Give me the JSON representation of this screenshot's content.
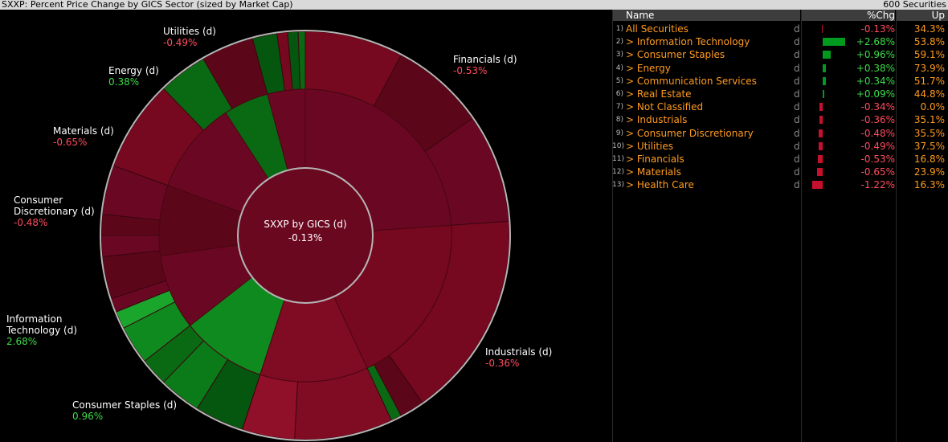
{
  "window": {
    "title": "SXXP: Percent Price Change by GICS Sector (sized by Market Cap)",
    "count": "600 Securities"
  },
  "chart_data": {
    "type": "sunburst",
    "center_label": "SXXP by GICS (d)",
    "center_value": "-0.13%",
    "sectors": [
      {
        "name": "Financials (d)",
        "value": "-0.53%",
        "chg": -0.53
      },
      {
        "name": "Industrials (d)",
        "value": "-0.36%",
        "chg": -0.36
      },
      {
        "name": "Consumer Staples (d)",
        "value": "0.96%",
        "chg": 0.96
      },
      {
        "name": "Information Technology (d)",
        "value": "2.68%",
        "chg": 2.68
      },
      {
        "name": "Consumer Discretionary (d)",
        "value": "-0.48%",
        "chg": -0.48
      },
      {
        "name": "Materials (d)",
        "value": "-0.65%",
        "chg": -0.65
      },
      {
        "name": "Energy (d)",
        "value": "0.38%",
        "chg": 0.38
      },
      {
        "name": "Utilities (d)",
        "value": "-0.49%",
        "chg": -0.49
      }
    ]
  },
  "table": {
    "columns": {
      "name": "Name",
      "chg": "%Chg",
      "up": "Up"
    },
    "rows": [
      {
        "idx": "1)",
        "name": "All Securities",
        "d": "d",
        "chg": "-0.13%",
        "chg_val": -0.13,
        "up": "34.3%"
      },
      {
        "idx": "2)",
        "name": "> Information Technology",
        "d": "d",
        "chg": "+2.68%",
        "chg_val": 2.68,
        "up": "53.8%"
      },
      {
        "idx": "3)",
        "name": "> Consumer Staples",
        "d": "d",
        "chg": "+0.96%",
        "chg_val": 0.96,
        "up": "59.1%"
      },
      {
        "idx": "4)",
        "name": "> Energy",
        "d": "d",
        "chg": "+0.38%",
        "chg_val": 0.38,
        "up": "73.9%"
      },
      {
        "idx": "5)",
        "name": "> Communication Services",
        "d": "d",
        "chg": "+0.34%",
        "chg_val": 0.34,
        "up": "51.7%"
      },
      {
        "idx": "6)",
        "name": "> Real Estate",
        "d": "d",
        "chg": "+0.09%",
        "chg_val": 0.09,
        "up": "44.8%"
      },
      {
        "idx": "7)",
        "name": "> Not Classified",
        "d": "d",
        "chg": "-0.34%",
        "chg_val": -0.34,
        "up": "0.0%"
      },
      {
        "idx": "8)",
        "name": "> Industrials",
        "d": "d",
        "chg": "-0.36%",
        "chg_val": -0.36,
        "up": "35.1%"
      },
      {
        "idx": "9)",
        "name": "> Consumer Discretionary",
        "d": "d",
        "chg": "-0.48%",
        "chg_val": -0.48,
        "up": "35.5%"
      },
      {
        "idx": "10)",
        "name": "> Utilities",
        "d": "d",
        "chg": "-0.49%",
        "chg_val": -0.49,
        "up": "37.5%"
      },
      {
        "idx": "11)",
        "name": "> Financials",
        "d": "d",
        "chg": "-0.53%",
        "chg_val": -0.53,
        "up": "16.8%"
      },
      {
        "idx": "12)",
        "name": "> Materials",
        "d": "d",
        "chg": "-0.65%",
        "chg_val": -0.65,
        "up": "23.9%"
      },
      {
        "idx": "13)",
        "name": "> Health Care",
        "d": "d",
        "chg": "-1.22%",
        "chg_val": -1.22,
        "up": "16.3%"
      }
    ]
  },
  "colors": {
    "negative": "#ff4d5e",
    "positive": "#3ddc47",
    "accent": "#ff9b1f",
    "bar_negative": "#c8102e",
    "bar_positive": "#009a1e"
  }
}
